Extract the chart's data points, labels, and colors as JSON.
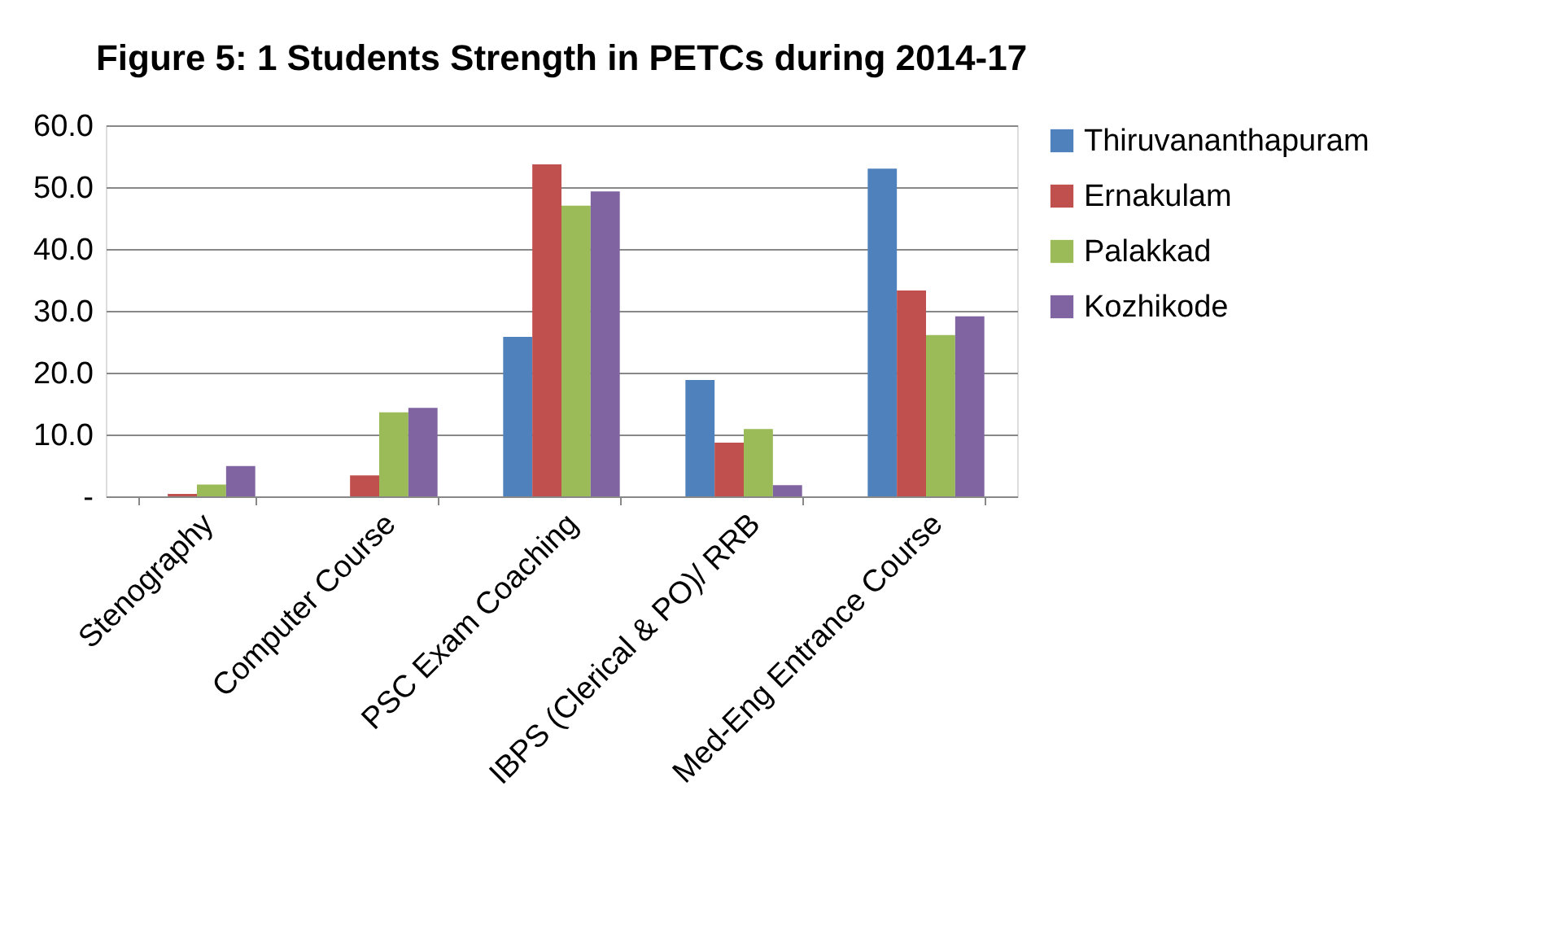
{
  "chart_data": {
    "type": "bar",
    "title": "Figure 5: 1 Students Strength in PETCs during 2014-17",
    "categories": [
      "Stenography",
      "Computer Course",
      "PSC Exam Coaching",
      "IBPS (Clerical & PO)/ RRB",
      "Med-Eng Entrance Course"
    ],
    "series": [
      {
        "name": "Thiruvananthapuram",
        "color": "#4f81bd",
        "values": [
          0,
          0,
          25.8,
          18.8,
          53.0
        ]
      },
      {
        "name": "Ernakulam",
        "color": "#c0504d",
        "values": [
          0.4,
          3.4,
          53.7,
          8.7,
          33.3
        ]
      },
      {
        "name": "Palakkad",
        "color": "#9bbb59",
        "values": [
          1.9,
          13.6,
          47.0,
          10.9,
          26.1
        ]
      },
      {
        "name": "Kozhikode",
        "color": "#8064a2",
        "values": [
          4.9,
          14.3,
          49.3,
          1.8,
          29.1
        ]
      }
    ],
    "ylim": [
      0,
      60
    ],
    "yticks": [
      {
        "value": 0,
        "label": "-"
      },
      {
        "value": 10,
        "label": "10.0"
      },
      {
        "value": 20,
        "label": "20.0"
      },
      {
        "value": 30,
        "label": "30.0"
      },
      {
        "value": 40,
        "label": "40.0"
      },
      {
        "value": 50,
        "label": "50.0"
      },
      {
        "value": 60,
        "label": "60.0"
      }
    ],
    "grid": "y",
    "legend": "right"
  }
}
